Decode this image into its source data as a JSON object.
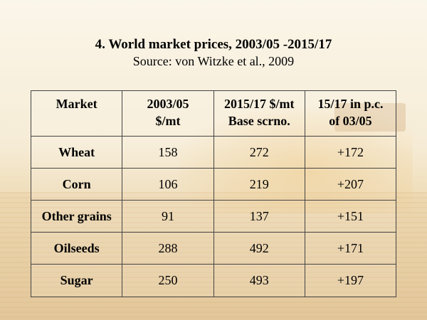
{
  "slide": {
    "title": "4. World market prices, 2003/05 -2015/17",
    "subtitle": "Source: von Witzke et al., 2009"
  },
  "table": {
    "headers": [
      [
        "Market"
      ],
      [
        "2003/05",
        "$/mt"
      ],
      [
        "2015/17 $/mt",
        "Base scrno."
      ],
      [
        "15/17 in p.c.",
        "of 03/05"
      ]
    ],
    "rows": [
      {
        "market": "Wheat",
        "p0305": "158",
        "p1517": "272",
        "pct": "+172"
      },
      {
        "market": "Corn",
        "p0305": "106",
        "p1517": "219",
        "pct": "+207"
      },
      {
        "market": "Other grains",
        "p0305": "91",
        "p1517": "137",
        "pct": "+151"
      },
      {
        "market": "Oilseeds",
        "p0305": "288",
        "p1517": "492",
        "pct": "+171"
      },
      {
        "market": "Sugar",
        "p0305": "250",
        "p1517": "493",
        "pct": "+197"
      }
    ]
  }
}
